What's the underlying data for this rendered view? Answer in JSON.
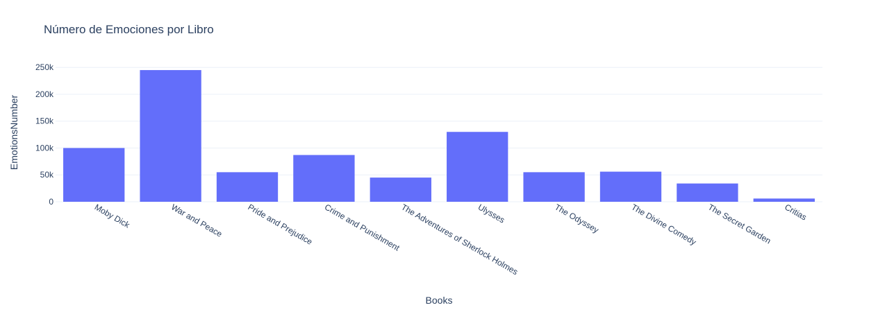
{
  "chart_data": {
    "type": "bar",
    "title": "Número de Emociones por Libro",
    "xlabel": "Books",
    "ylabel": "EmotionsNumber",
    "categories": [
      "Moby Dick",
      "War and Peace",
      "Pride and Prejudice",
      "Crime and Punishment",
      "The Adventures of Sherlock Holmes",
      "Ulysses",
      "The Odyssey",
      "The Divine Comedy",
      "The Secret Garden",
      "Critias"
    ],
    "values": [
      100000,
      245000,
      55000,
      87000,
      45000,
      130000,
      55000,
      56000,
      34000,
      6000
    ],
    "ylim": [
      0,
      258000
    ],
    "yticks": [
      0,
      50000,
      100000,
      150000,
      200000,
      250000
    ],
    "ytick_labels": [
      "0",
      "50k",
      "100k",
      "150k",
      "200k",
      "250k"
    ],
    "grid": true,
    "bar_color": "#636efa",
    "grid_color": "#ebf0f8",
    "text_color": "#2a3f5f"
  }
}
